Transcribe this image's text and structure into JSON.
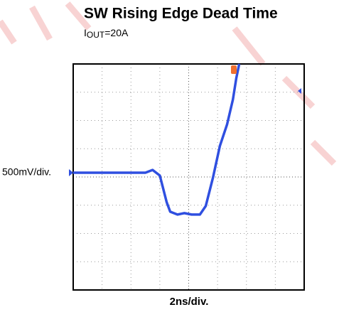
{
  "chart_data": {
    "type": "line",
    "title": "SW Rising Edge Dead Time",
    "subtitle_parts": [
      "I",
      "OUT",
      "=20A"
    ],
    "ylabel": "500mV/div.",
    "xlabel": "2ns/div.",
    "x": [
      -4,
      -1.5,
      -1.25,
      -1.0,
      -0.76,
      -0.64,
      -0.39,
      -0.15,
      0.1,
      0.39,
      0.59,
      0.84,
      1.08,
      1.33,
      1.53,
      1.65,
      1.75
    ],
    "series": [
      {
        "color": "#2f4fe0",
        "values": [
          0.15,
          0.15,
          0.25,
          0.05,
          -0.9,
          -1.23,
          -1.33,
          -1.28,
          -1.33,
          -1.33,
          -1.03,
          -0.03,
          1.1,
          1.86,
          2.74,
          3.5,
          4.0
        ]
      }
    ],
    "xlim": [
      -4,
      4
    ],
    "ylim": [
      -4,
      4
    ],
    "grid": true
  }
}
